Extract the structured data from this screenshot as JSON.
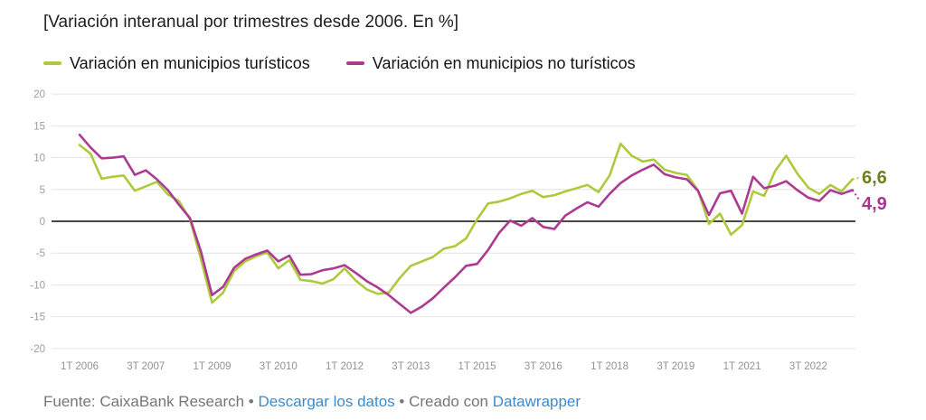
{
  "header": {
    "title": "[Variación interanual por trimestres desde 2006. En %]"
  },
  "legend": {
    "items": [
      {
        "label": "Variación en municipios turísticos",
        "color": "#aeca3c"
      },
      {
        "label": "Variación en municipios no turísticos",
        "color": "#ad3a91"
      }
    ]
  },
  "footer": {
    "source_label": "Fuente: CaixaBank Research",
    "bullet": "•",
    "download_link_label": "Descargar los datos",
    "created_with_label": "Creado con",
    "creator_link_label": "Datawrapper",
    "link_color": "#3a8ad0",
    "text_color": "#767676"
  },
  "chart_data": {
    "type": "line",
    "title": "[Variación interanual por trimestres desde 2006. En %]",
    "x_unit": "quarter",
    "x_start_label": "1T 2006",
    "x_tick_labels": [
      "1T 2006",
      "3T 2007",
      "1T 2009",
      "3T 2010",
      "1T 2012",
      "3T 2013",
      "1T 2015",
      "3T 2016",
      "1T 2018",
      "3T 2019",
      "1T 2021",
      "3T 2022"
    ],
    "x_tick_indices": [
      0,
      6,
      12,
      18,
      24,
      30,
      36,
      42,
      48,
      54,
      60,
      66
    ],
    "y_ticks": [
      20,
      15,
      10,
      5,
      0,
      -5,
      -10,
      -15,
      -20
    ],
    "ylim": [
      -20,
      20
    ],
    "grid": "horizontal",
    "legend_position": "top",
    "series": [
      {
        "name": "Variación en municipios turísticos",
        "color": "#aeca3c",
        "label_color": "#6f7e1e",
        "end_label": "6,6",
        "end_value": 6.6,
        "values": [
          12.0,
          10.6,
          6.7,
          7.0,
          7.2,
          4.8,
          5.5,
          6.2,
          4.2,
          3.2,
          0.3,
          -6.0,
          -12.8,
          -11.2,
          -7.8,
          -6.3,
          -5.5,
          -4.9,
          -7.4,
          -6.1,
          -9.2,
          -9.4,
          -9.8,
          -9.1,
          -7.4,
          -9.3,
          -10.7,
          -11.4,
          -11.2,
          -8.9,
          -7.0,
          -6.3,
          -5.6,
          -4.3,
          -3.9,
          -2.7,
          0.3,
          2.8,
          3.1,
          3.6,
          4.3,
          4.8,
          3.8,
          4.1,
          4.7,
          5.2,
          5.7,
          4.6,
          7.2,
          12.2,
          10.3,
          9.4,
          9.7,
          8.1,
          7.6,
          7.3,
          4.9,
          -0.4,
          1.2,
          -2.1,
          -0.6,
          4.7,
          4.0,
          7.9,
          10.3,
          7.5,
          5.3,
          4.3,
          5.7,
          4.7,
          6.6
        ]
      },
      {
        "name": "Variación en municipios no turísticos",
        "color": "#ad3a91",
        "label_color": "#ab3391",
        "end_label": "4,9",
        "end_value": 4.9,
        "values": [
          13.6,
          11.6,
          9.9,
          10.0,
          10.2,
          7.3,
          8.0,
          6.6,
          4.9,
          2.6,
          0.5,
          -4.8,
          -11.6,
          -10.3,
          -7.3,
          -5.9,
          -5.2,
          -4.6,
          -6.3,
          -5.4,
          -8.4,
          -8.3,
          -7.7,
          -7.4,
          -6.9,
          -8.1,
          -9.4,
          -10.4,
          -11.6,
          -13.0,
          -14.4,
          -13.4,
          -12.1,
          -10.4,
          -8.8,
          -7.0,
          -6.7,
          -4.5,
          -1.8,
          0.1,
          -0.7,
          0.5,
          -0.9,
          -1.2,
          0.9,
          2.0,
          3.0,
          2.3,
          4.3,
          6.0,
          7.2,
          8.1,
          8.9,
          7.4,
          6.9,
          6.6,
          4.8,
          1.0,
          4.4,
          4.8,
          1.2,
          7.0,
          5.2,
          5.6,
          6.3,
          4.9,
          3.7,
          3.2,
          4.9,
          4.3,
          4.9
        ]
      }
    ],
    "axis_colors": {
      "tick_text": "#929292",
      "gridline": "#e4e4e4",
      "zero_line": "#2e2e2e"
    }
  }
}
